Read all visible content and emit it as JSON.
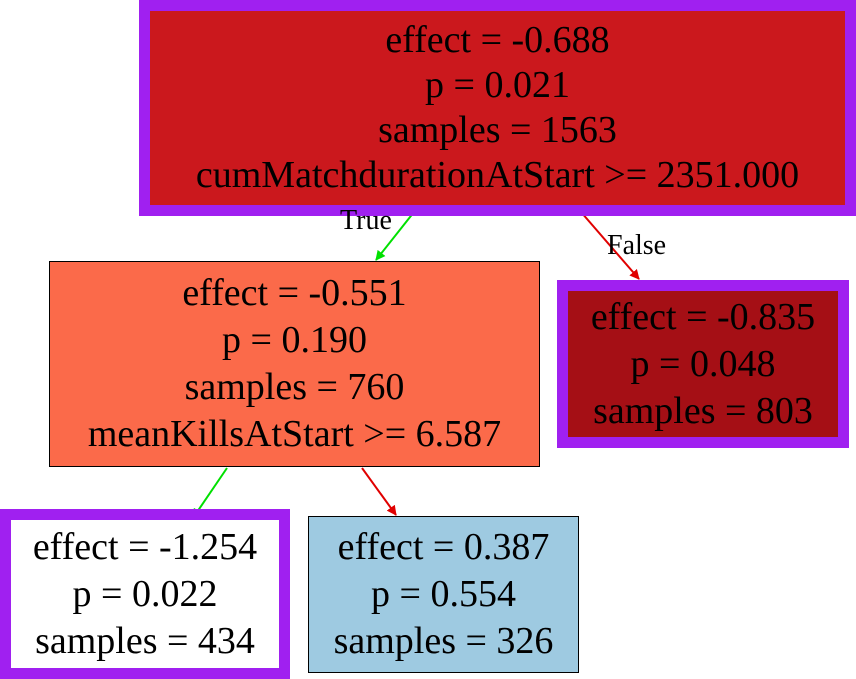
{
  "colors": {
    "highlight_border": "#a020f0",
    "true_edge": "#00e000",
    "false_edge": "#e00000",
    "node_root_fill": "#cb181d",
    "node_left_fill": "#fb6a4a",
    "node_right_fill": "#a50f15",
    "node_ll_fill": "#ffffff",
    "node_lr_fill": "#9ecae1"
  },
  "nodes": {
    "root": {
      "effect": "effect = -0.688",
      "p": "p = 0.021",
      "samples": "samples = 1563",
      "split": "cumMatchdurationAtStart >= 2351.000"
    },
    "left": {
      "effect": "effect = -0.551",
      "p": "p = 0.190",
      "samples": "samples = 760",
      "split": "meanKillsAtStart >= 6.587"
    },
    "right": {
      "effect": "effect = -0.835",
      "p": "p = 0.048",
      "samples": "samples = 803"
    },
    "left_left": {
      "effect": "effect = -1.254",
      "p": "p = 0.022",
      "samples": "samples = 434"
    },
    "left_right": {
      "effect": "effect = 0.387",
      "p": "p = 0.554",
      "samples": "samples = 326"
    }
  },
  "edges": {
    "true_label": "True",
    "false_label": "False"
  }
}
